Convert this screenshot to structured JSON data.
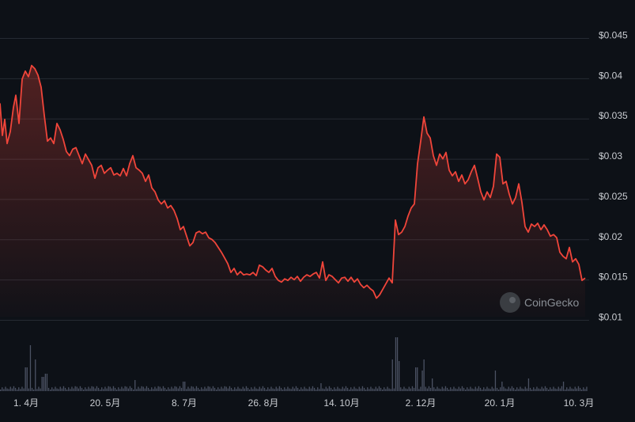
{
  "chart_data": {
    "type": "area",
    "title": "",
    "xlabel": "",
    "ylabel": "",
    "y_ticks": [
      "$0.045",
      "$0.04",
      "$0.035",
      "$0.03",
      "$0.025",
      "$0.02",
      "$0.015",
      "$0.01"
    ],
    "x_ticks": [
      "1. 4月",
      "20. 5月",
      "8. 7月",
      "26. 8月",
      "14. 10月",
      "2. 12月",
      "20. 1月",
      "10. 3月"
    ],
    "ylim": [
      0.01,
      0.045
    ],
    "grid": true,
    "line_color": "#f0453a",
    "fill_color": "#f0453a",
    "volume_color": "#4b5263",
    "price_series": [
      [
        0,
        0.0365
      ],
      [
        3,
        0.0325
      ],
      [
        6,
        0.0345
      ],
      [
        9,
        0.0315
      ],
      [
        13,
        0.033
      ],
      [
        17,
        0.036
      ],
      [
        20,
        0.0375
      ],
      [
        24,
        0.034
      ],
      [
        28,
        0.0395
      ],
      [
        32,
        0.0405
      ],
      [
        36,
        0.0398
      ],
      [
        40,
        0.0412
      ],
      [
        44,
        0.0408
      ],
      [
        48,
        0.04
      ],
      [
        52,
        0.0385
      ],
      [
        56,
        0.035
      ],
      [
        60,
        0.0318
      ],
      [
        64,
        0.0322
      ],
      [
        68,
        0.0315
      ],
      [
        72,
        0.034
      ],
      [
        76,
        0.0332
      ],
      [
        80,
        0.032
      ],
      [
        84,
        0.0305
      ],
      [
        88,
        0.03
      ],
      [
        92,
        0.0308
      ],
      [
        96,
        0.031
      ],
      [
        100,
        0.03
      ],
      [
        104,
        0.029
      ],
      [
        108,
        0.0302
      ],
      [
        112,
        0.0295
      ],
      [
        116,
        0.0288
      ],
      [
        120,
        0.0272
      ],
      [
        124,
        0.0285
      ],
      [
        128,
        0.0288
      ],
      [
        132,
        0.0278
      ],
      [
        136,
        0.0282
      ],
      [
        140,
        0.0285
      ],
      [
        144,
        0.0276
      ],
      [
        148,
        0.0278
      ],
      [
        152,
        0.0275
      ],
      [
        156,
        0.0284
      ],
      [
        160,
        0.0275
      ],
      [
        164,
        0.029
      ],
      [
        168,
        0.03
      ],
      [
        172,
        0.0285
      ],
      [
        176,
        0.0282
      ],
      [
        180,
        0.0278
      ],
      [
        184,
        0.0268
      ],
      [
        188,
        0.0276
      ],
      [
        192,
        0.026
      ],
      [
        196,
        0.0255
      ],
      [
        200,
        0.0245
      ],
      [
        204,
        0.024
      ],
      [
        208,
        0.0244
      ],
      [
        212,
        0.0235
      ],
      [
        216,
        0.0238
      ],
      [
        220,
        0.0232
      ],
      [
        224,
        0.0222
      ],
      [
        228,
        0.0208
      ],
      [
        232,
        0.0212
      ],
      [
        236,
        0.02
      ],
      [
        240,
        0.0188
      ],
      [
        244,
        0.0192
      ],
      [
        248,
        0.0204
      ],
      [
        252,
        0.0206
      ],
      [
        256,
        0.0203
      ],
      [
        260,
        0.0205
      ],
      [
        264,
        0.0198
      ],
      [
        268,
        0.0196
      ],
      [
        272,
        0.0192
      ],
      [
        276,
        0.0186
      ],
      [
        280,
        0.018
      ],
      [
        284,
        0.0173
      ],
      [
        288,
        0.0166
      ],
      [
        292,
        0.0155
      ],
      [
        296,
        0.016
      ],
      [
        300,
        0.0152
      ],
      [
        304,
        0.0156
      ],
      [
        308,
        0.0152
      ],
      [
        312,
        0.0153
      ],
      [
        316,
        0.0152
      ],
      [
        320,
        0.0155
      ],
      [
        324,
        0.0151
      ],
      [
        328,
        0.0164
      ],
      [
        332,
        0.0162
      ],
      [
        336,
        0.0158
      ],
      [
        340,
        0.0155
      ],
      [
        344,
        0.016
      ],
      [
        348,
        0.015
      ],
      [
        352,
        0.0145
      ],
      [
        356,
        0.0143
      ],
      [
        360,
        0.0147
      ],
      [
        364,
        0.0145
      ],
      [
        368,
        0.0149
      ],
      [
        372,
        0.0146
      ],
      [
        376,
        0.015
      ],
      [
        380,
        0.0144
      ],
      [
        384,
        0.0149
      ],
      [
        388,
        0.0152
      ],
      [
        392,
        0.015
      ],
      [
        396,
        0.0153
      ],
      [
        400,
        0.0155
      ],
      [
        404,
        0.0148
      ],
      [
        408,
        0.0168
      ],
      [
        412,
        0.0145
      ],
      [
        416,
        0.0152
      ],
      [
        420,
        0.015
      ],
      [
        424,
        0.0146
      ],
      [
        428,
        0.0142
      ],
      [
        432,
        0.0148
      ],
      [
        436,
        0.0149
      ],
      [
        440,
        0.0144
      ],
      [
        444,
        0.0149
      ],
      [
        448,
        0.0143
      ],
      [
        452,
        0.0147
      ],
      [
        456,
        0.014
      ],
      [
        460,
        0.0136
      ],
      [
        464,
        0.0139
      ],
      [
        468,
        0.0135
      ],
      [
        472,
        0.0132
      ],
      [
        476,
        0.0123
      ],
      [
        480,
        0.0127
      ],
      [
        484,
        0.0134
      ],
      [
        488,
        0.0141
      ],
      [
        492,
        0.0148
      ],
      [
        496,
        0.0142
      ],
      [
        500,
        0.022
      ],
      [
        504,
        0.0202
      ],
      [
        508,
        0.0205
      ],
      [
        512,
        0.0212
      ],
      [
        516,
        0.0225
      ],
      [
        520,
        0.0235
      ],
      [
        524,
        0.024
      ],
      [
        528,
        0.029
      ],
      [
        532,
        0.0318
      ],
      [
        536,
        0.0348
      ],
      [
        540,
        0.0328
      ],
      [
        544,
        0.0322
      ],
      [
        548,
        0.03
      ],
      [
        552,
        0.0288
      ],
      [
        556,
        0.0302
      ],
      [
        560,
        0.0296
      ],
      [
        564,
        0.0304
      ],
      [
        568,
        0.0282
      ],
      [
        572,
        0.0275
      ],
      [
        576,
        0.028
      ],
      [
        580,
        0.0268
      ],
      [
        584,
        0.0276
      ],
      [
        588,
        0.0265
      ],
      [
        592,
        0.027
      ],
      [
        596,
        0.028
      ],
      [
        600,
        0.0288
      ],
      [
        604,
        0.0272
      ],
      [
        608,
        0.0255
      ],
      [
        612,
        0.0245
      ],
      [
        616,
        0.0255
      ],
      [
        620,
        0.0248
      ],
      [
        624,
        0.0262
      ],
      [
        628,
        0.0302
      ],
      [
        632,
        0.0298
      ],
      [
        636,
        0.0265
      ],
      [
        640,
        0.0268
      ],
      [
        644,
        0.0252
      ],
      [
        648,
        0.024
      ],
      [
        652,
        0.0248
      ],
      [
        656,
        0.0265
      ],
      [
        660,
        0.0242
      ],
      [
        664,
        0.0212
      ],
      [
        668,
        0.0205
      ],
      [
        672,
        0.0215
      ],
      [
        676,
        0.0212
      ],
      [
        680,
        0.0216
      ],
      [
        684,
        0.0208
      ],
      [
        688,
        0.0214
      ],
      [
        692,
        0.0208
      ],
      [
        696,
        0.02
      ],
      [
        700,
        0.0202
      ],
      [
        704,
        0.0198
      ],
      [
        708,
        0.018
      ],
      [
        712,
        0.0175
      ],
      [
        716,
        0.0172
      ],
      [
        720,
        0.0186
      ],
      [
        724,
        0.0168
      ],
      [
        728,
        0.0172
      ],
      [
        732,
        0.0165
      ],
      [
        736,
        0.0145
      ],
      [
        740,
        0.0148
      ]
    ]
  },
  "watermark": {
    "text": "CoinGecko"
  }
}
